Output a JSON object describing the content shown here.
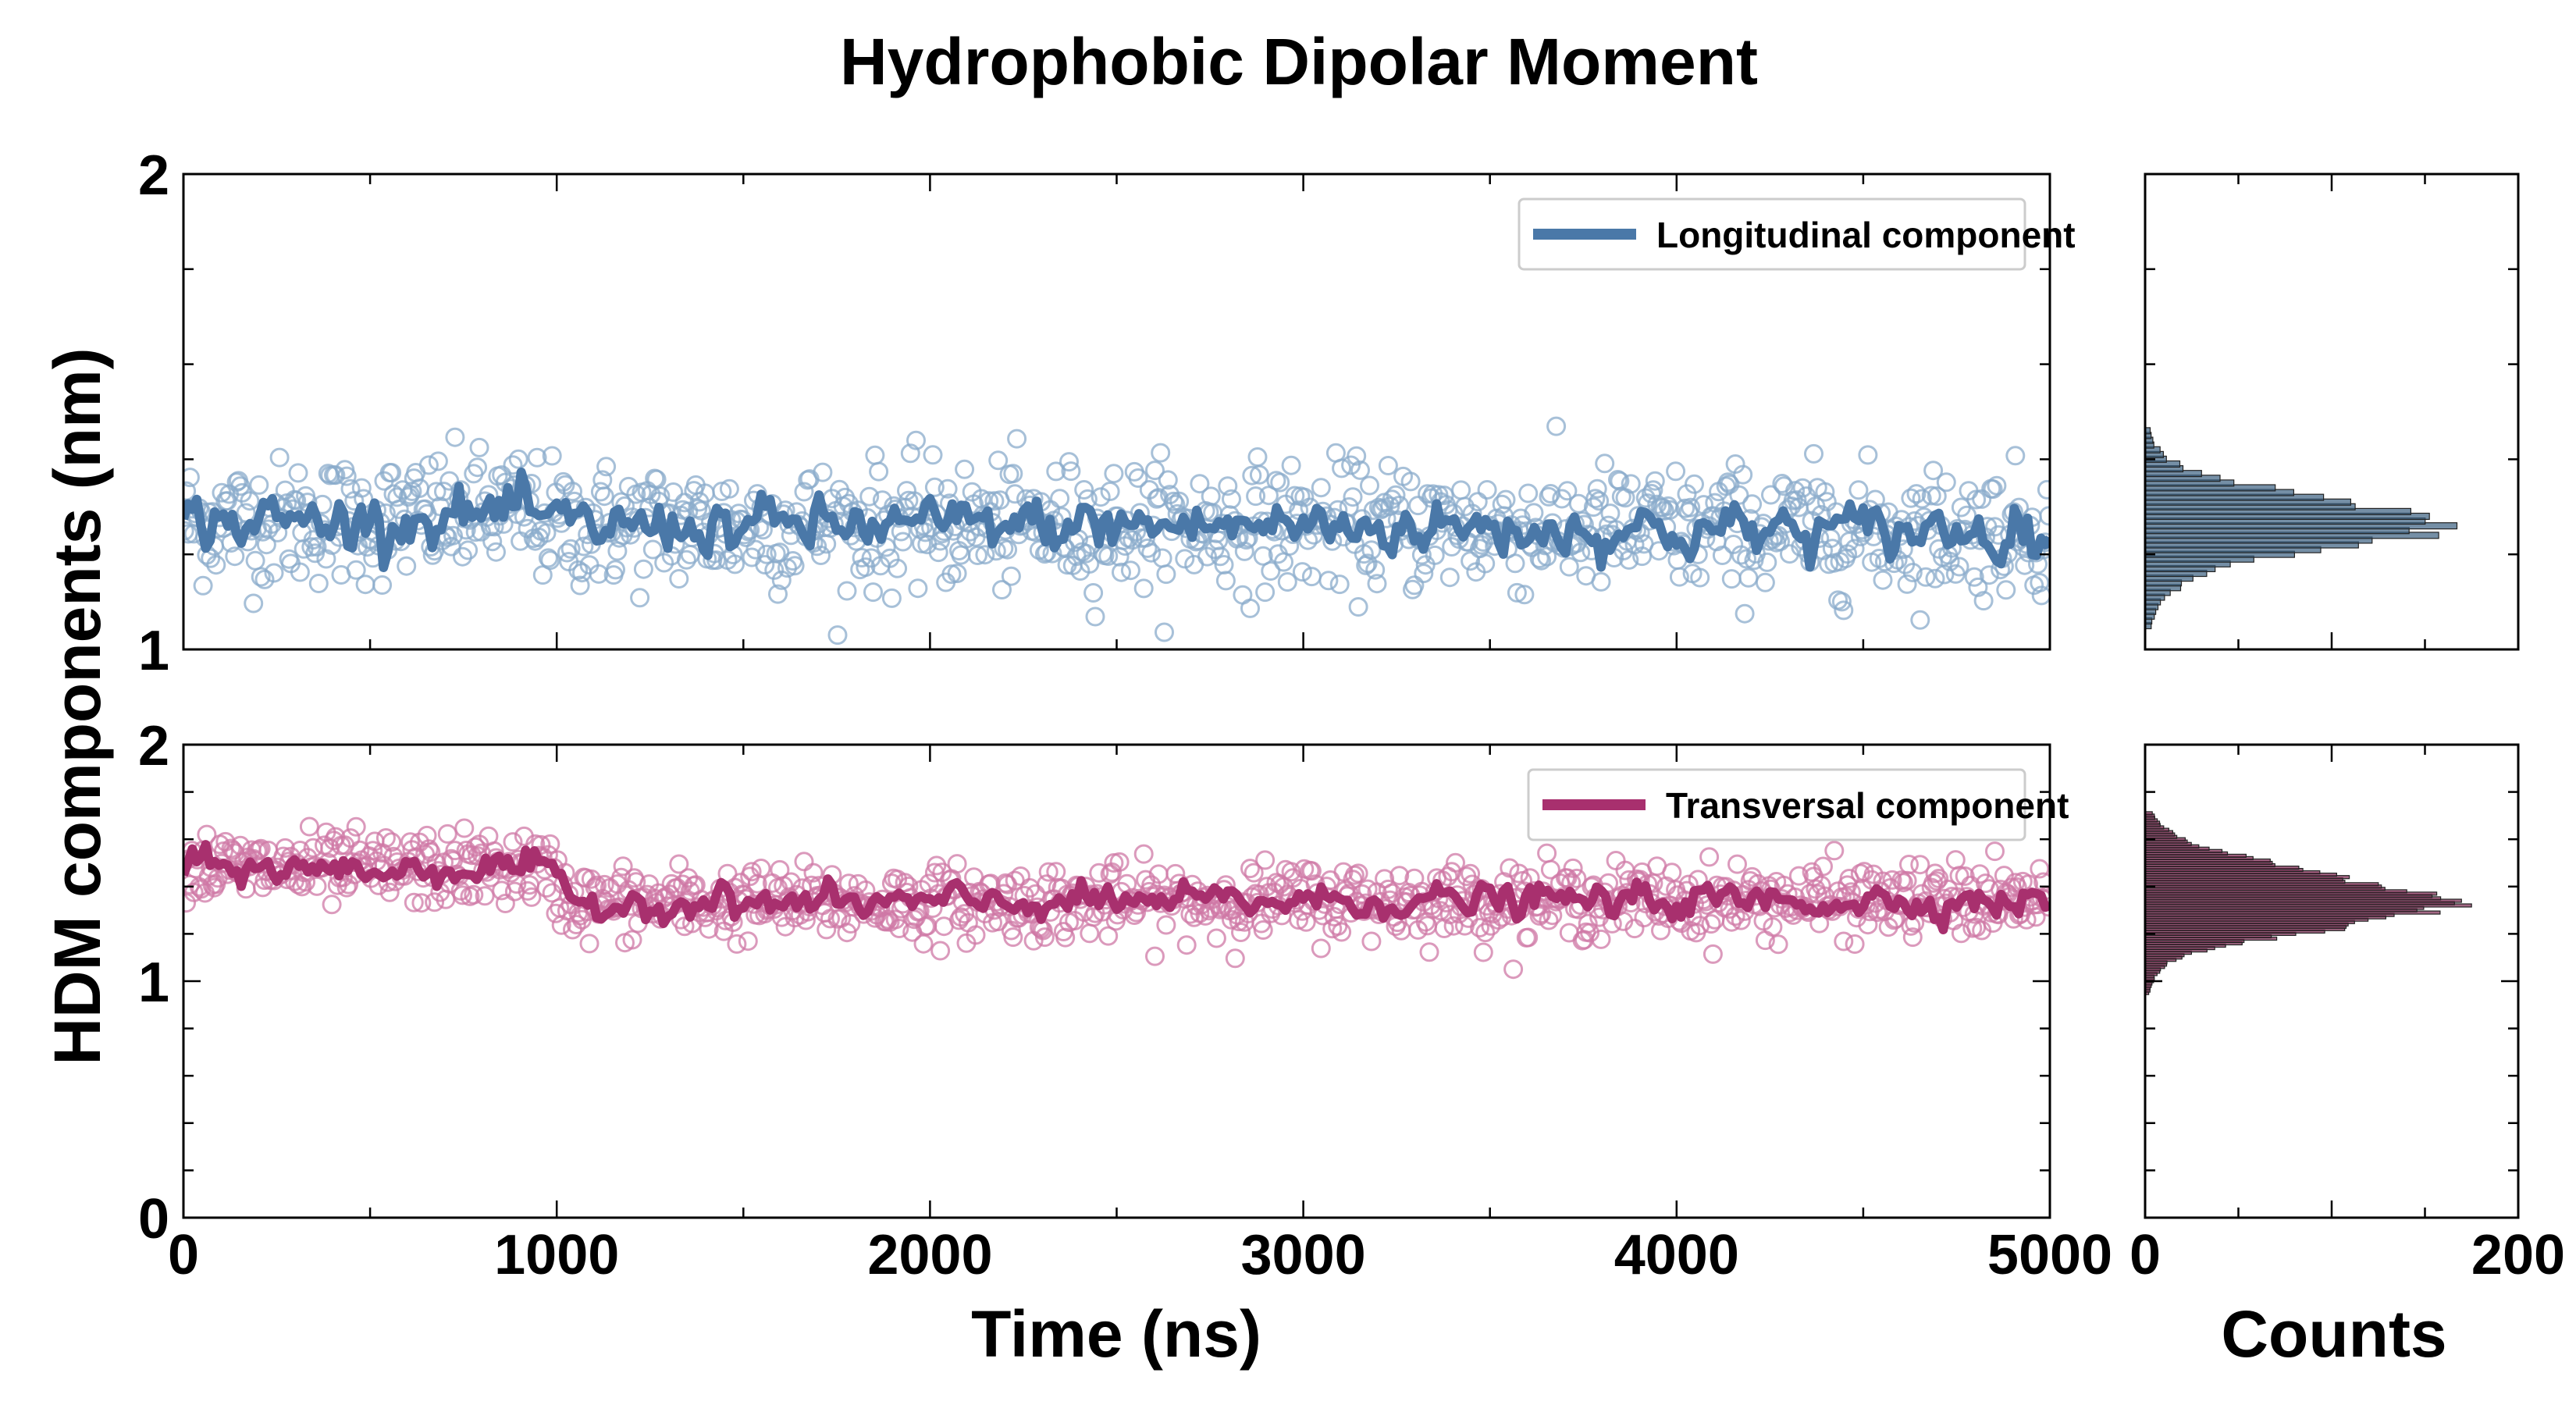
{
  "chart_data": {
    "type": "scatter",
    "title": "Hydrophobic Dipolar Moment",
    "ylabel": "HDM components (nm)",
    "xlabel": "Time (ns)",
    "hist_xlabel": "Counts",
    "xlim": [
      0,
      5000
    ],
    "hist_xlim": [
      0,
      200
    ],
    "x_tick_labels": [
      "0",
      "1000",
      "2000",
      "3000",
      "4000",
      "5000"
    ],
    "hist_tick_labels": [
      "0",
      "200"
    ],
    "panels": [
      {
        "name": "longitudinal",
        "ylim": [
          1,
          2
        ],
        "y_tick_labels": [
          "1",
          "2"
        ],
        "legend": "Longitudinal component",
        "color": "#4a78a8",
        "scatter_color": "#8aabcb",
        "hist_color": "#3a5f80",
        "series_mean": [
          {
            "x": 0,
            "y": 1.27
          },
          {
            "x": 500,
            "y": 1.27
          },
          {
            "x": 900,
            "y": 1.29
          },
          {
            "x": 1000,
            "y": 1.26
          },
          {
            "x": 2000,
            "y": 1.26
          },
          {
            "x": 3000,
            "y": 1.26
          },
          {
            "x": 4000,
            "y": 1.25
          },
          {
            "x": 5000,
            "y": 1.25
          }
        ],
        "scatter_spread": 0.12,
        "line_noise": 0.025,
        "hist_bins_center": [
          1.05,
          1.1,
          1.15,
          1.18,
          1.2,
          1.22,
          1.24,
          1.26,
          1.28,
          1.3,
          1.32,
          1.34,
          1.36,
          1.38,
          1.4,
          1.43,
          1.47
        ],
        "hist_counts": [
          3,
          8,
          25,
          45,
          80,
          115,
          150,
          160,
          155,
          125,
          95,
          65,
          40,
          22,
          12,
          5,
          2
        ]
      },
      {
        "name": "transversal",
        "ylim": [
          0,
          2
        ],
        "y_tick_labels": [
          "0",
          "1",
          "2"
        ],
        "legend": "Transversal component",
        "color": "#a8306e",
        "scatter_color": "#cf78a5",
        "hist_color": "#7a2750",
        "series_mean": [
          {
            "x": 0,
            "y": 1.48
          },
          {
            "x": 500,
            "y": 1.47
          },
          {
            "x": 950,
            "y": 1.48
          },
          {
            "x": 1050,
            "y": 1.33
          },
          {
            "x": 2000,
            "y": 1.33
          },
          {
            "x": 3000,
            "y": 1.34
          },
          {
            "x": 4000,
            "y": 1.34
          },
          {
            "x": 5000,
            "y": 1.34
          }
        ],
        "scatter_spread": 0.14,
        "line_noise": 0.03,
        "hist_bins_center": [
          0.95,
          1.02,
          1.08,
          1.12,
          1.16,
          1.2,
          1.24,
          1.28,
          1.32,
          1.36,
          1.4,
          1.44,
          1.48,
          1.52,
          1.56,
          1.6,
          1.66,
          1.72
        ],
        "hist_counts": [
          2,
          5,
          12,
          25,
          50,
          80,
          115,
          145,
          160,
          150,
          130,
          105,
          80,
          55,
          35,
          20,
          8,
          3
        ]
      }
    ]
  }
}
